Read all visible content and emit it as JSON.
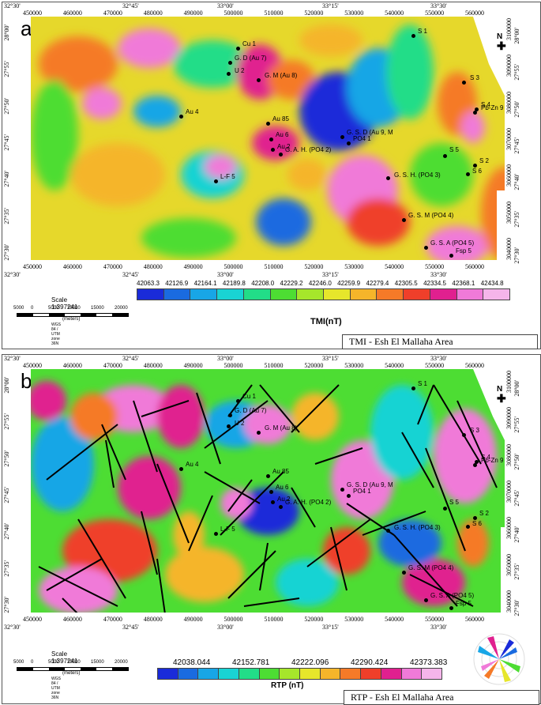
{
  "panels": [
    {
      "letter": "a",
      "caption": "TMI -  Esh El Mallaha Area",
      "legend_title": "TMI(nT)",
      "legend_ticks": [
        "42063.3",
        "42126.9",
        "42164.1",
        "42189.8",
        "42208.0",
        "42229.2",
        "42246.0",
        "42259.9",
        "42279.4",
        "42305.5",
        "42334.5",
        "42368.1",
        "42434.8"
      ],
      "legend_colors": [
        "#1a2bd9",
        "#1a6be0",
        "#18a6e6",
        "#19d3d3",
        "#22dd88",
        "#4ddd33",
        "#a6e62b",
        "#e6e62b",
        "#f5b52a",
        "#f57a28",
        "#ef3f2a",
        "#e0208f",
        "#f07ad8",
        "#f5b5ea"
      ]
    },
    {
      "letter": "b",
      "caption": "RTP - Esh El Mallaha Area",
      "legend_title": "RTP (nT)",
      "legend_ticks": [
        "42038.044",
        "42152.781",
        "42222.096",
        "42290.424",
        "42373.383"
      ],
      "legend_colors": [
        "#1a2bd9",
        "#1a6be0",
        "#18a6e6",
        "#19d3d3",
        "#22dd88",
        "#4ddd33",
        "#a6e62b",
        "#e6e62b",
        "#f5b52a",
        "#f57a28",
        "#ef3f2a",
        "#e0208f",
        "#f07ad8",
        "#f5b5ea"
      ]
    }
  ],
  "axes": {
    "top_lon": [
      "32°30'",
      "32°45'",
      "33°00'",
      "33°15'",
      "33°30'"
    ],
    "easting": [
      "450000",
      "460000",
      "470000",
      "480000",
      "490000",
      "500000",
      "510000",
      "520000",
      "530000",
      "540000",
      "550000",
      "560000"
    ],
    "northing": [
      "3100000",
      "3090000",
      "3080000",
      "3070000",
      "3060000",
      "3050000",
      "3040000"
    ],
    "left_lat": [
      "28°00'",
      "27°55'",
      "27°50'",
      "27°45'",
      "27°40'",
      "27°35'",
      "27°30'"
    ],
    "right_lat": [
      "28°00'",
      "27°55'",
      "27°50'",
      "27°45'",
      "27°40'",
      "27°35'",
      "27°30'"
    ],
    "bottom_lon": [
      "32°30'",
      "32°45'",
      "33°00'",
      "33°15'",
      "33°30'"
    ]
  },
  "scale": {
    "label": "Scale 1:397241",
    "ticks": [
      "5000",
      "0",
      "5000",
      "10000",
      "15000",
      "20000"
    ],
    "units": "(meters)",
    "projection": "WGS 84 / UTM zone 36N"
  },
  "north_label": "N",
  "sites_a": [
    "Cu 1",
    "G. D (Au 7)",
    "U 2",
    "G. M (Au 8)",
    "S 1",
    "S 3",
    "S 4",
    "Pb-Zn 9",
    "Au 4",
    "Au 85",
    "Au 6",
    "Au 2",
    "G. A. H. (PO4 2)",
    "G. S. D (Au 9, M",
    "PO4 1",
    "S 5",
    "S 2",
    "S 6",
    "L-F 5",
    "G. S. H. (PO4 3)",
    "G. S. M (PO4 4)",
    "G. S. A (PO4 5)",
    "Fsp 5"
  ],
  "sites_b": [
    "Cu 1",
    "G. D (Au 7)",
    "U 2",
    "G. M (Au 8)",
    "S 1",
    "S 3",
    "S 4",
    "Pb-Zn 9",
    "Au 4",
    "Au 85",
    "Au 6",
    "Au 2",
    "G. A. H. (PO4 2)",
    "G. S. D (Au 9, M",
    "PO4 1",
    "S 5",
    "S 2",
    "S 6",
    "L-F 5",
    "G. S. H. (PO4 3)",
    "G. S. M (PO4 4)",
    "G. S. A (PO4 5)",
    "Fsp 5"
  ]
}
